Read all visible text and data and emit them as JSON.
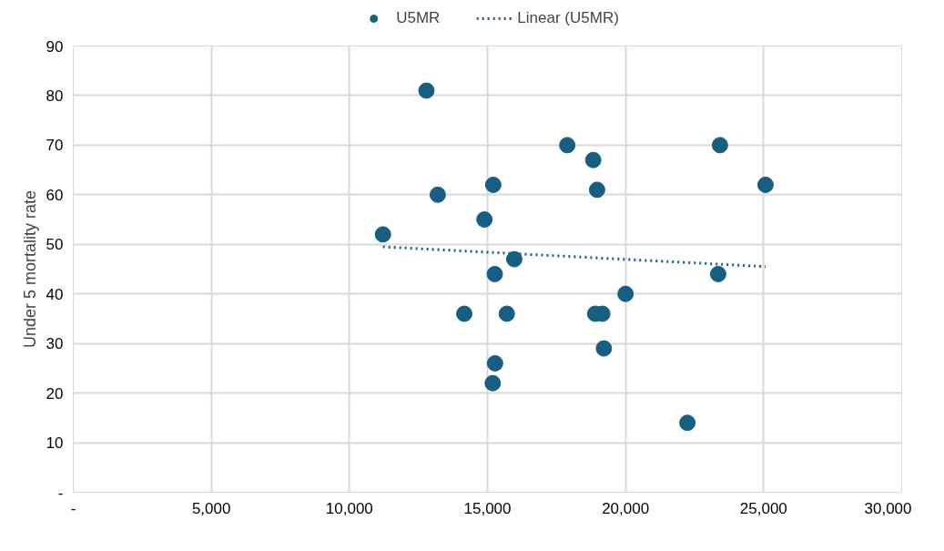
{
  "chart_data": {
    "type": "scatter",
    "ylabel": "Under 5 mortality rate",
    "legend": "top",
    "grid": true,
    "marker": "circle",
    "xlim": [
      0,
      30000
    ],
    "ylim": [
      0,
      90
    ],
    "xticks": [
      {
        "value": 0,
        "label": "-"
      },
      {
        "value": 5000,
        "label": "5,000"
      },
      {
        "value": 10000,
        "label": "10,000"
      },
      {
        "value": 15000,
        "label": "15,000"
      },
      {
        "value": 20000,
        "label": "20,000"
      },
      {
        "value": 25000,
        "label": "25,000"
      },
      {
        "value": 30000,
        "label": "30,000"
      }
    ],
    "yticks": [
      {
        "value": 0,
        "label": "-"
      },
      10,
      20,
      30,
      40,
      50,
      60,
      70,
      80,
      90
    ],
    "series": [
      {
        "name": "U5MR",
        "color": "#175e82",
        "x": [
          12790,
          13200,
          11215,
          15210,
          14890,
          15970,
          15265,
          14160,
          15700,
          15275,
          15190,
          17890,
          18830,
          18970,
          18900,
          19160,
          19215,
          20000,
          23420,
          25070,
          23355,
          22240
        ],
        "values": [
          81,
          60,
          52,
          62,
          55,
          47,
          44,
          36,
          36,
          26,
          22,
          70,
          67,
          61,
          36,
          36,
          29,
          40,
          70,
          62,
          44,
          14
        ]
      },
      {
        "name": "Linear (U5MR)",
        "type": "line",
        "marker": "none",
        "line_style": "dotted",
        "color": "#175e82",
        "x": [
          11215,
          25070
        ],
        "values": [
          49.5,
          45.5
        ]
      }
    ]
  }
}
